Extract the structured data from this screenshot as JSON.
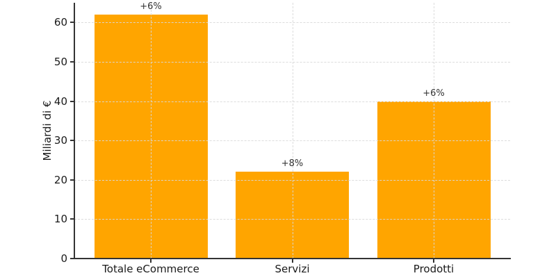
{
  "chart_data": {
    "type": "bar",
    "categories": [
      "Totale eCommerce",
      "Servizi",
      "Prodotti"
    ],
    "values": [
      62,
      22,
      40
    ],
    "bar_labels": [
      "+6%",
      "+8%",
      "+6%"
    ],
    "title": "",
    "xlabel": "",
    "ylabel": "Miliardi di €",
    "yticks": [
      0,
      10,
      20,
      30,
      40,
      50,
      60
    ],
    "ylim": [
      0,
      65
    ],
    "bar_color": "#FFA500",
    "grid_color": "#d9d9d9",
    "axis_color": "#333333",
    "text_color": "#1a1a1a",
    "annotation_color": "#333333",
    "grid": "on",
    "grid_style": "dashed",
    "legend_position": "none"
  }
}
